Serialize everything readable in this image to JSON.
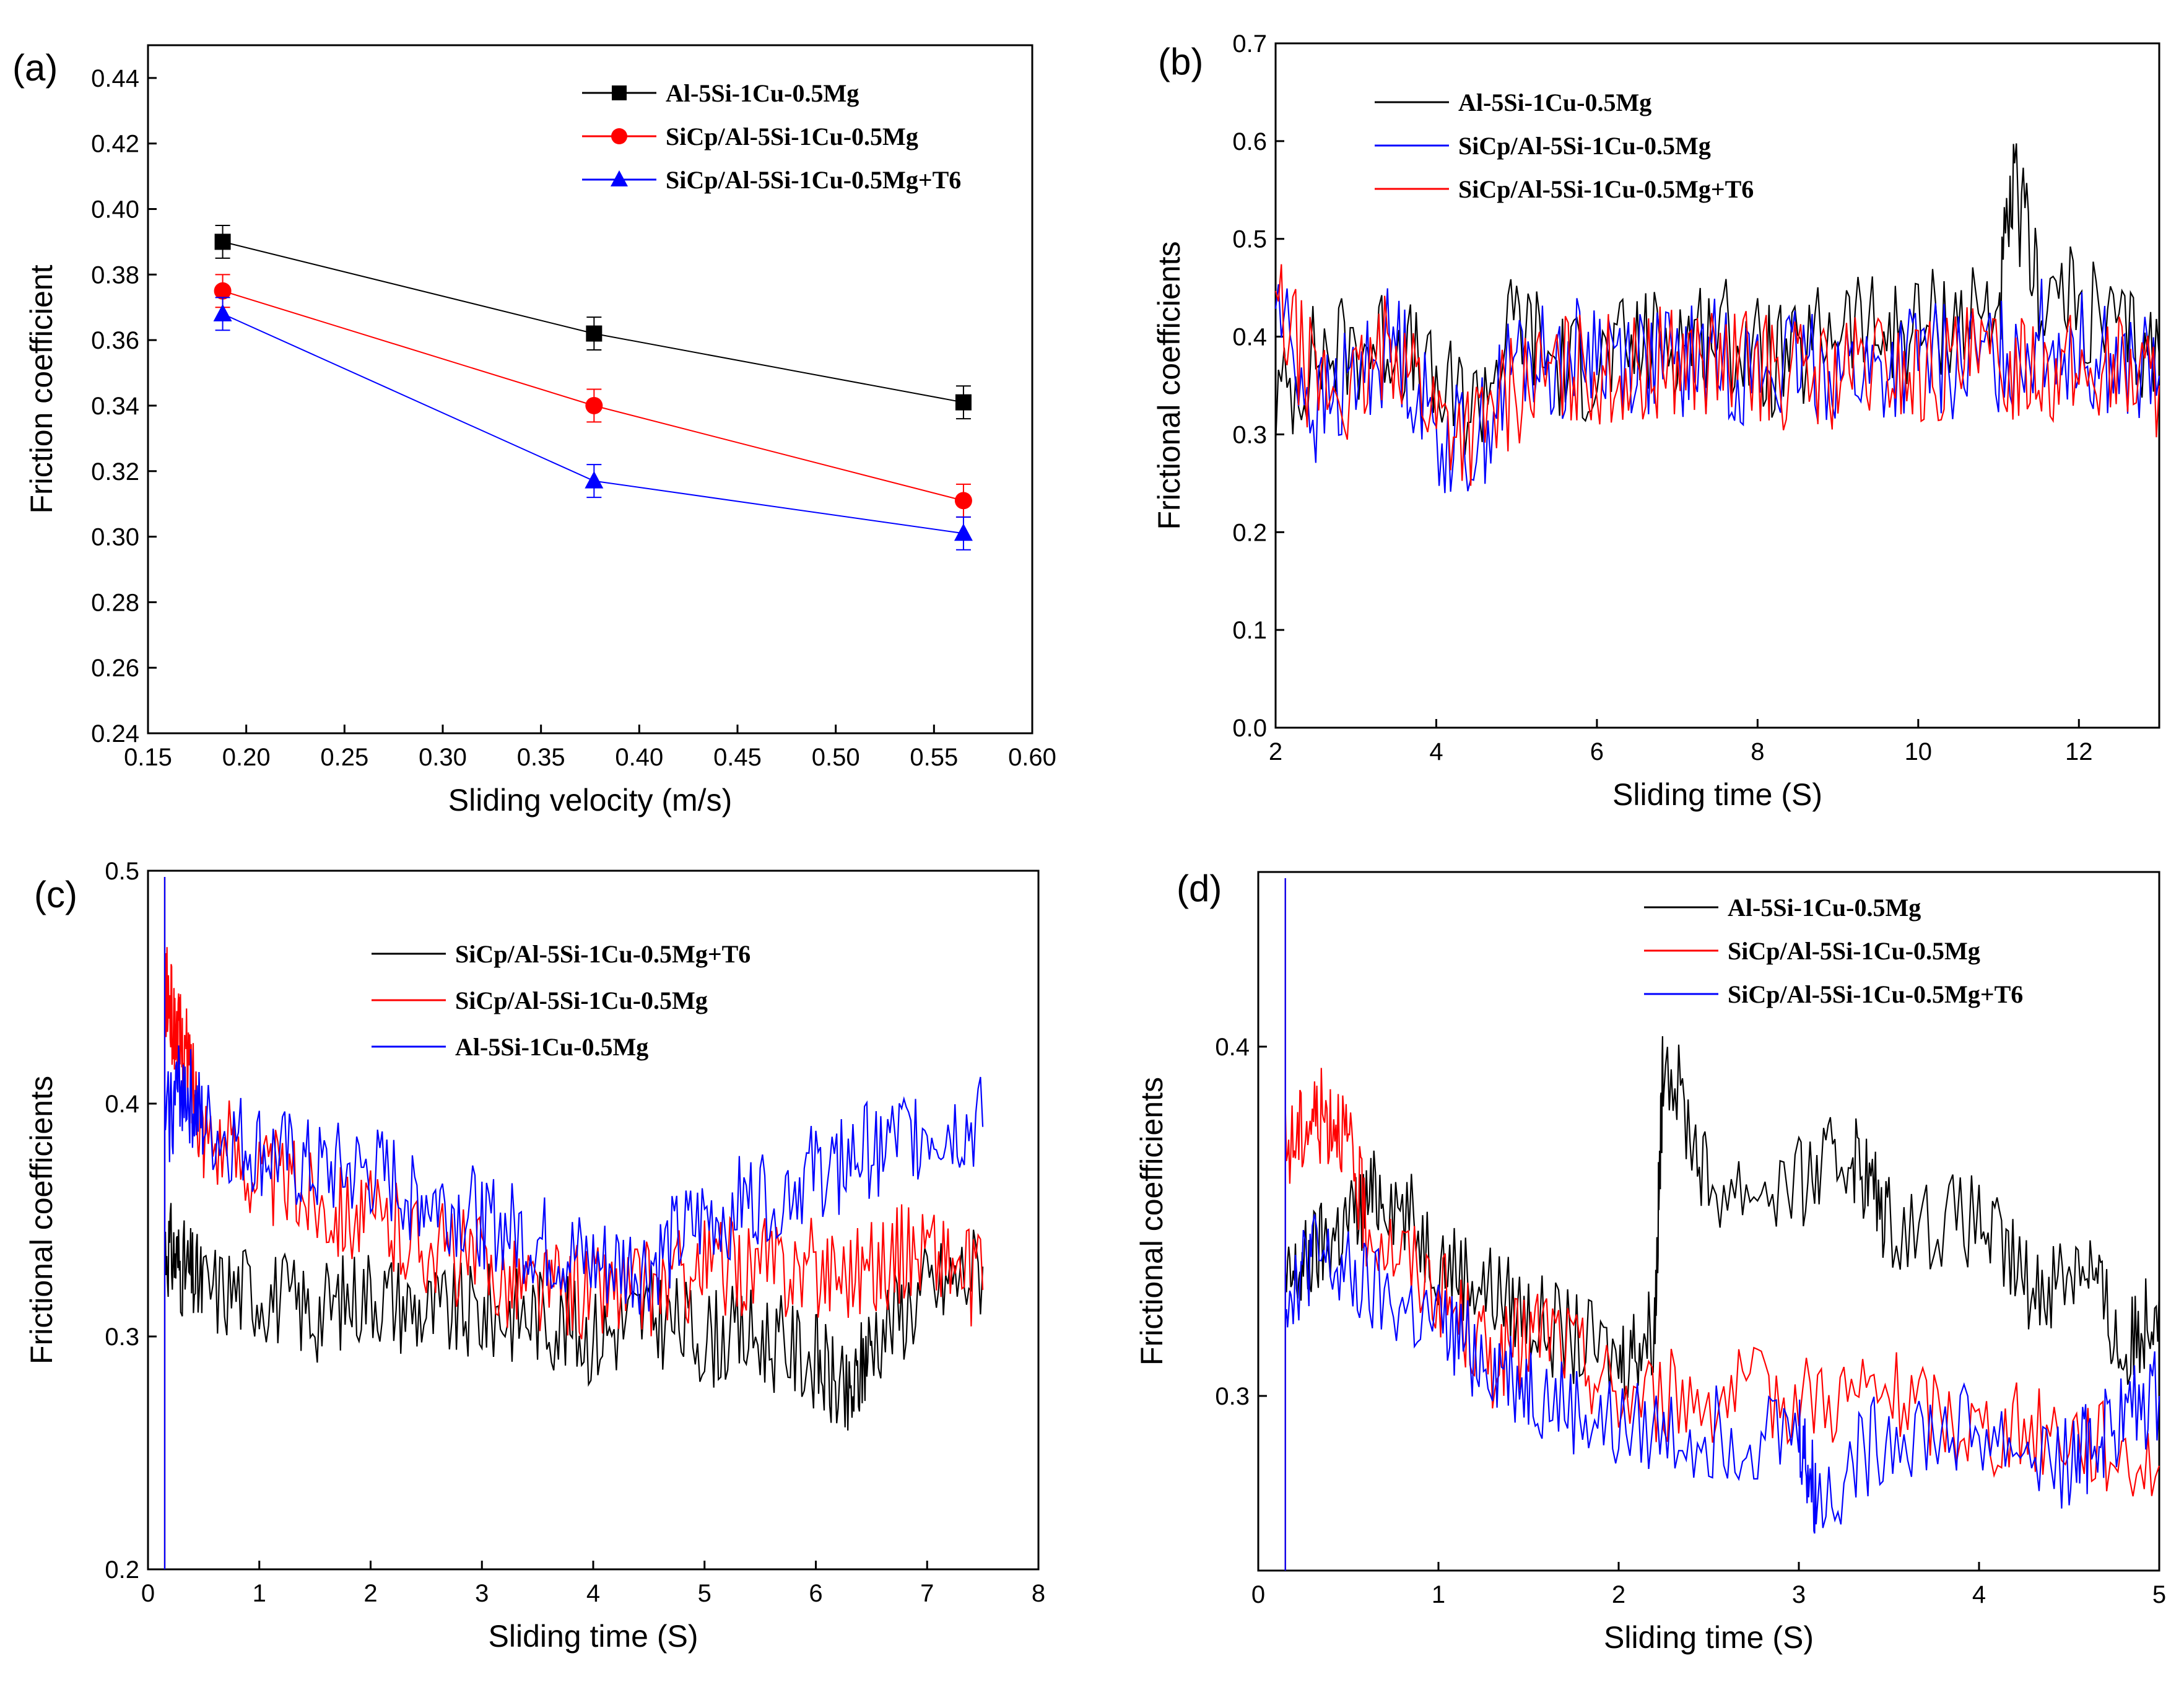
{
  "colors": {
    "black": "#000000",
    "red": "#ff0000",
    "blue": "#0000ff"
  },
  "chart_data": [
    {
      "panel": "(a)",
      "type": "line",
      "xlabel": "Sliding velocity (m/s)",
      "ylabel": "Friction coefficient",
      "xlim": [
        0.15,
        0.6
      ],
      "ylim": [
        0.24,
        0.45
      ],
      "xticks": [
        0.15,
        0.2,
        0.25,
        0.3,
        0.35,
        0.4,
        0.45,
        0.5,
        0.55,
        0.6
      ],
      "yticks": [
        0.24,
        0.26,
        0.28,
        0.3,
        0.32,
        0.34,
        0.36,
        0.38,
        0.4,
        0.42,
        0.44
      ],
      "xtick_labels": [
        "0.15",
        "0.20",
        "0.25",
        "0.30",
        "0.35",
        "0.40",
        "0.45",
        "0.50",
        "0.55",
        "0.60"
      ],
      "ytick_labels": [
        "0.24",
        "0.26",
        "0.28",
        "0.30",
        "0.32",
        "0.34",
        "0.36",
        "0.38",
        "0.40",
        "0.42",
        "0.44"
      ],
      "x": [
        0.188,
        0.377,
        0.565
      ],
      "series": [
        {
          "name": "Al-5Si-1Cu-0.5Mg",
          "color": "#000000",
          "marker": "square",
          "values": [
            0.39,
            0.362,
            0.341
          ],
          "errors": [
            0.005,
            0.005,
            0.005
          ]
        },
        {
          "name": "SiCp/Al-5Si-1Cu-0.5Mg",
          "color": "#ff0000",
          "marker": "circle",
          "values": [
            0.375,
            0.34,
            0.311
          ],
          "errors": [
            0.005,
            0.005,
            0.005
          ]
        },
        {
          "name": "SiCp/Al-5Si-1Cu-0.5Mg+T6",
          "color": "#0000ff",
          "marker": "triangle",
          "values": [
            0.368,
            0.317,
            0.301
          ],
          "errors": [
            0.005,
            0.005,
            0.005
          ]
        }
      ],
      "legend": "top-right"
    },
    {
      "panel": "(b)",
      "type": "line",
      "xlabel": "Sliding time (S)",
      "ylabel": "Frictional coefficients",
      "xlim": [
        2,
        13
      ],
      "ylim": [
        0.0,
        0.7
      ],
      "xticks": [
        2,
        4,
        6,
        8,
        10,
        12
      ],
      "yticks": [
        0.0,
        0.1,
        0.2,
        0.3,
        0.4,
        0.5,
        0.6,
        0.7
      ],
      "xtick_labels": [
        "2",
        "4",
        "6",
        "8",
        "10",
        "12"
      ],
      "ytick_labels": [
        "0.0",
        "0.1",
        "0.2",
        "0.3",
        "0.4",
        "0.5",
        "0.6",
        "0.7"
      ],
      "series": [
        {
          "name": "Al-5Si-1Cu-0.5Mg",
          "color": "#000000",
          "x": [
            2,
            2.5,
            3,
            3.5,
            4,
            4.5,
            5,
            5.5,
            6,
            6.5,
            7,
            7.5,
            8,
            8.5,
            9,
            9.5,
            10,
            10.5,
            11,
            11.2,
            11.5,
            12,
            12.5,
            13
          ],
          "values": [
            0.33,
            0.38,
            0.39,
            0.4,
            0.34,
            0.33,
            0.42,
            0.37,
            0.37,
            0.39,
            0.4,
            0.41,
            0.38,
            0.37,
            0.42,
            0.4,
            0.41,
            0.42,
            0.43,
            0.55,
            0.45,
            0.43,
            0.4,
            0.38
          ]
        },
        {
          "name": "SiCp/Al-5Si-1Cu-0.5Mg",
          "color": "#0000ff",
          "x": [
            2,
            2.5,
            3,
            3.5,
            4,
            4.5,
            5,
            5.5,
            6,
            6.5,
            7,
            7.5,
            8,
            8.5,
            9,
            9.5,
            10,
            10.5,
            11,
            11.5,
            12,
            12.5,
            13
          ],
          "values": [
            0.44,
            0.32,
            0.36,
            0.4,
            0.3,
            0.29,
            0.38,
            0.37,
            0.39,
            0.38,
            0.37,
            0.38,
            0.36,
            0.37,
            0.37,
            0.36,
            0.38,
            0.37,
            0.38,
            0.4,
            0.39,
            0.37,
            0.36
          ]
        },
        {
          "name": "SiCp/Al-5Si-1Cu-0.5Mg+T6",
          "color": "#ff0000",
          "x": [
            2,
            2.5,
            3,
            3.5,
            4,
            4.5,
            5,
            5.5,
            6,
            6.5,
            7,
            7.5,
            8,
            8.5,
            9,
            9.5,
            10,
            10.5,
            11,
            11.5,
            12,
            12.5,
            13
          ],
          "values": [
            0.43,
            0.35,
            0.34,
            0.4,
            0.32,
            0.3,
            0.35,
            0.36,
            0.37,
            0.36,
            0.38,
            0.37,
            0.37,
            0.36,
            0.36,
            0.37,
            0.36,
            0.37,
            0.37,
            0.38,
            0.36,
            0.37,
            0.35
          ]
        }
      ],
      "legend": "top-left"
    },
    {
      "panel": "(c)",
      "type": "line",
      "xlabel": "Sliding time (S)",
      "ylabel": "Frictional coefficients",
      "xlim": [
        0,
        8
      ],
      "ylim": [
        0.2,
        0.5
      ],
      "xticks": [
        0,
        1,
        2,
        3,
        4,
        5,
        6,
        7,
        8
      ],
      "yticks": [
        0.2,
        0.3,
        0.4,
        0.5
      ],
      "xtick_labels": [
        "0",
        "1",
        "2",
        "3",
        "4",
        "5",
        "6",
        "7",
        "8"
      ],
      "ytick_labels": [
        "0.2",
        "0.3",
        "0.4",
        "0.5"
      ],
      "series": [
        {
          "name": "SiCp/Al-5Si-1Cu-0.5Mg+T6",
          "color": "#000000",
          "x": [
            0.15,
            0.3,
            0.5,
            1,
            1.5,
            2,
            2.5,
            3,
            3.5,
            4,
            4.5,
            5,
            5.5,
            6,
            6.3,
            6.5,
            7,
            7.5
          ],
          "values": [
            0.34,
            0.33,
            0.32,
            0.32,
            0.31,
            0.32,
            0.31,
            0.31,
            0.31,
            0.3,
            0.31,
            0.3,
            0.3,
            0.29,
            0.27,
            0.3,
            0.32,
            0.33
          ]
        },
        {
          "name": "SiCp/Al-5Si-1Cu-0.5Mg",
          "color": "#ff0000",
          "x": [
            0.15,
            0.25,
            0.35,
            0.5,
            1,
            1.5,
            2,
            2.5,
            3,
            3.5,
            4,
            4.5,
            5,
            5.5,
            6,
            6.5,
            7,
            7.5
          ],
          "values": [
            0.45,
            0.43,
            0.42,
            0.39,
            0.37,
            0.36,
            0.35,
            0.34,
            0.33,
            0.32,
            0.32,
            0.32,
            0.33,
            0.33,
            0.33,
            0.33,
            0.34,
            0.32
          ]
        },
        {
          "name": "Al-5Si-1Cu-0.5Mg",
          "color": "#0000ff",
          "x": [
            0.15,
            0.3,
            0.5,
            1,
            1.5,
            2,
            2.5,
            3,
            3.5,
            4,
            4.5,
            5,
            5.5,
            6,
            6.5,
            7,
            7.5
          ],
          "values": [
            0.39,
            0.41,
            0.39,
            0.38,
            0.37,
            0.37,
            0.36,
            0.35,
            0.34,
            0.33,
            0.33,
            0.35,
            0.36,
            0.37,
            0.38,
            0.39,
            0.39
          ]
        }
      ],
      "legend": "top-center"
    },
    {
      "panel": "(d)",
      "type": "line",
      "xlabel": "Sliding time (S)",
      "ylabel": "Frictional coefficients",
      "xlim": [
        0,
        5
      ],
      "ylim": [
        0.25,
        0.45
      ],
      "xticks": [
        0,
        1,
        2,
        3,
        4,
        5
      ],
      "yticks": [
        0.3,
        0.4
      ],
      "xtick_labels": [
        "0",
        "1",
        "2",
        "3",
        "4",
        "5"
      ],
      "ytick_labels": [
        "0.3",
        "0.4"
      ],
      "series": [
        {
          "name": "Al-5Si-1Cu-0.5Mg",
          "color": "#000000",
          "x": [
            0.15,
            0.3,
            0.5,
            0.7,
            1,
            1.3,
            1.6,
            2,
            2.2,
            2.25,
            2.5,
            3,
            3.3,
            3.5,
            4,
            4.3,
            4.6,
            4.8,
            5
          ],
          "values": [
            0.33,
            0.34,
            0.35,
            0.36,
            0.34,
            0.33,
            0.32,
            0.31,
            0.32,
            0.4,
            0.36,
            0.36,
            0.37,
            0.35,
            0.35,
            0.33,
            0.34,
            0.31,
            0.33
          ]
        },
        {
          "name": "SiCp/Al-5Si-1Cu-0.5Mg",
          "color": "#ff0000",
          "x": [
            0.15,
            0.3,
            0.45,
            0.6,
            1,
            1.3,
            1.6,
            2,
            2.5,
            3,
            3.5,
            4,
            4.5,
            5
          ],
          "values": [
            0.37,
            0.38,
            0.38,
            0.35,
            0.33,
            0.31,
            0.32,
            0.3,
            0.3,
            0.3,
            0.3,
            0.29,
            0.29,
            0.28
          ]
        },
        {
          "name": "SiCp/Al-5Si-1Cu-0.5Mg+T6",
          "color": "#0000ff",
          "x": [
            0.15,
            0.3,
            0.6,
            1,
            1.3,
            1.6,
            2,
            2.5,
            3,
            3.1,
            3.5,
            4,
            4.5,
            4.7,
            5
          ],
          "values": [
            0.33,
            0.34,
            0.33,
            0.32,
            0.31,
            0.3,
            0.29,
            0.29,
            0.29,
            0.27,
            0.29,
            0.29,
            0.28,
            0.29,
            0.3
          ]
        }
      ],
      "legend": "top-center"
    }
  ]
}
